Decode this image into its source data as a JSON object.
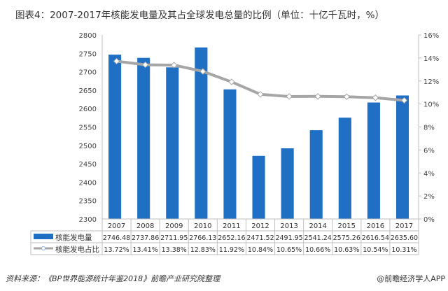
{
  "title": "图表4：2007-2017年核能发电量及其占全球发电总量的比例（单位：十亿千瓦时，%）",
  "source": "资料来源：《BP世界能源统计年鉴2018》前瞻产业研究院整理",
  "credit": "@前瞻经济学人APP",
  "chart_data": {
    "type": "bar+line",
    "categories": [
      "2007",
      "2008",
      "2009",
      "2010",
      "2011",
      "2012",
      "2013",
      "2014",
      "2015",
      "2016",
      "2017"
    ],
    "series": [
      {
        "name": "核能发电量",
        "axis": "left",
        "type": "bar",
        "color": "#1f6fc5",
        "values": [
          2746.48,
          2737.86,
          2711.95,
          2766.13,
          2652.16,
          2471.52,
          2491.95,
          2541.24,
          2575.26,
          2616.54,
          2635.6
        ],
        "labels": [
          "2746.48",
          "2737.86",
          "2711.95",
          "2766.13",
          "2652.16",
          "2471.52",
          "2491.95",
          "2541.24",
          "2575.26",
          "2616.54",
          "2635.60"
        ]
      },
      {
        "name": "核能发电占比",
        "axis": "right",
        "type": "line",
        "color": "#a6a6a6",
        "values": [
          13.72,
          13.41,
          13.38,
          12.83,
          11.92,
          10.84,
          10.65,
          10.66,
          10.63,
          10.54,
          10.31
        ],
        "labels": [
          "13.72%",
          "13.41%",
          "13.38%",
          "12.83%",
          "11.92%",
          "10.84%",
          "10.65%",
          "10.66%",
          "10.63%",
          "10.54%",
          "10.31%"
        ]
      }
    ],
    "ylim": [
      2300,
      2800
    ],
    "yticks": [
      "2300",
      "2350",
      "2400",
      "2450",
      "2500",
      "2550",
      "2600",
      "2650",
      "2700",
      "2750",
      "2800"
    ],
    "y2lim": [
      0,
      16
    ],
    "y2ticks": [
      "0%",
      "2%",
      "4%",
      "6%",
      "8%",
      "10%",
      "12%",
      "14%",
      "16%"
    ],
    "grid": false,
    "legend": "data-table"
  }
}
